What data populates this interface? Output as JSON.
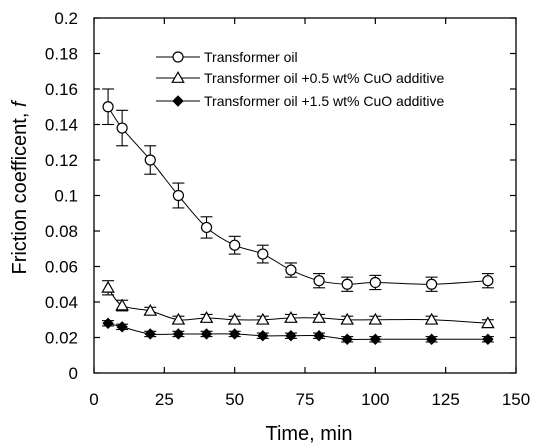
{
  "chart_data": {
    "type": "line",
    "title": "",
    "xlabel": "Time, min",
    "ylabel": "Friction coefficent, ",
    "ylabel_symbol": "f",
    "xlim": [
      0,
      150
    ],
    "ylim": [
      0,
      0.2
    ],
    "xticks": [
      "0",
      "25",
      "50",
      "75",
      "100",
      "125",
      "150"
    ],
    "yticks": [
      "0",
      "0.02",
      "0.04",
      "0.06",
      "0.08",
      "0.1",
      "0.12",
      "0.14",
      "0.16",
      "0.18",
      "0.2"
    ],
    "grid": false,
    "legend_position": "top-center",
    "series": [
      {
        "name": "Transformer oil",
        "marker": "open-circle",
        "x": [
          5,
          10,
          20,
          30,
          40,
          50,
          60,
          70,
          80,
          90,
          100,
          120,
          140
        ],
        "y": [
          0.15,
          0.138,
          0.12,
          0.1,
          0.082,
          0.072,
          0.067,
          0.058,
          0.052,
          0.05,
          0.051,
          0.05,
          0.052
        ],
        "err": [
          0.01,
          0.01,
          0.008,
          0.007,
          0.006,
          0.005,
          0.005,
          0.004,
          0.004,
          0.004,
          0.004,
          0.004,
          0.004
        ]
      },
      {
        "name": "Transformer oil +0.5 wt%  CuO additive",
        "marker": "open-triangle",
        "x": [
          5,
          10,
          20,
          30,
          40,
          50,
          60,
          70,
          80,
          90,
          100,
          120,
          140
        ],
        "y": [
          0.048,
          0.038,
          0.035,
          0.03,
          0.031,
          0.03,
          0.03,
          0.031,
          0.031,
          0.03,
          0.03,
          0.03,
          0.028
        ],
        "err": [
          0.004,
          0.003,
          0.002,
          0.002,
          0.002,
          0.002,
          0.002,
          0.002,
          0.002,
          0.002,
          0.002,
          0.002,
          0.002
        ]
      },
      {
        "name": "Transformer oil +1.5 wt%  CuO additive",
        "marker": "filled-diamond",
        "x": [
          5,
          10,
          20,
          30,
          40,
          50,
          60,
          70,
          80,
          90,
          100,
          120,
          140
        ],
        "y": [
          0.028,
          0.026,
          0.022,
          0.022,
          0.022,
          0.022,
          0.021,
          0.021,
          0.021,
          0.019,
          0.019,
          0.019,
          0.019
        ],
        "err": [
          0.0015,
          0.0015,
          0.0015,
          0.0015,
          0.0015,
          0.0015,
          0.0015,
          0.0015,
          0.0015,
          0.0015,
          0.0015,
          0.0015,
          0.0015
        ]
      }
    ],
    "colors": {
      "line": "#000000",
      "background": "#ffffff"
    }
  }
}
